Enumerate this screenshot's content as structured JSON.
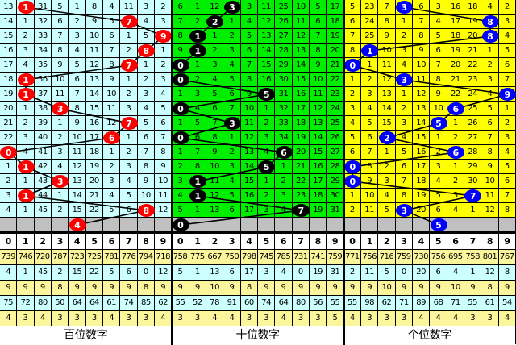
{
  "chart_data": {
    "type": "table",
    "sections": [
      {
        "label": "百位数字",
        "bg": "#ccffff",
        "ball_color": "#ff0000",
        "rows": [
          [
            13,
            1,
            31,
            5,
            1,
            8,
            4,
            11,
            3,
            2
          ],
          [
            14,
            1,
            32,
            6,
            2,
            9,
            5,
            7,
            4,
            3
          ],
          [
            15,
            2,
            33,
            7,
            3,
            10,
            6,
            1,
            5,
            9
          ],
          [
            16,
            3,
            34,
            8,
            4,
            11,
            7,
            2,
            8,
            1
          ],
          [
            17,
            4,
            35,
            9,
            5,
            12,
            8,
            7,
            1,
            2
          ],
          [
            18,
            1,
            36,
            10,
            6,
            13,
            9,
            1,
            2,
            3
          ],
          [
            19,
            1,
            37,
            11,
            7,
            14,
            10,
            2,
            3,
            4
          ],
          [
            20,
            1,
            38,
            3,
            8,
            15,
            11,
            3,
            4,
            5
          ],
          [
            21,
            2,
            39,
            1,
            9,
            16,
            12,
            7,
            5,
            6
          ],
          [
            22,
            3,
            40,
            2,
            10,
            17,
            6,
            1,
            6,
            7
          ],
          [
            0,
            4,
            41,
            3,
            11,
            18,
            1,
            2,
            7,
            8
          ],
          [
            1,
            1,
            42,
            4,
            12,
            19,
            2,
            3,
            8,
            9
          ],
          [
            2,
            1,
            43,
            3,
            13,
            20,
            3,
            4,
            9,
            10
          ],
          [
            3,
            1,
            44,
            1,
            14,
            21,
            4,
            5,
            10,
            11
          ],
          [
            4,
            1,
            45,
            2,
            15,
            22,
            5,
            6,
            8,
            12
          ]
        ],
        "draws": [
          1,
          7,
          9,
          8,
          7,
          1,
          1,
          3,
          7,
          6,
          0,
          1,
          3,
          1,
          8
        ],
        "prediction": 4,
        "stats": [
          [
            739,
            746,
            720,
            787,
            723,
            725,
            781,
            776,
            794,
            718
          ],
          [
            4,
            1,
            45,
            2,
            15,
            22,
            5,
            6,
            0,
            12
          ],
          [
            9,
            9,
            9,
            8,
            9,
            9,
            9,
            9,
            8,
            9
          ],
          [
            75,
            72,
            80,
            50,
            64,
            64,
            61,
            74,
            85,
            62
          ],
          [
            4,
            3,
            4,
            3,
            3,
            3,
            4,
            3,
            3,
            4
          ]
        ]
      },
      {
        "label": "十位数字",
        "bg": "#00ee00",
        "ball_color": "#000000",
        "rows": [
          [
            6,
            1,
            12,
            3,
            3,
            11,
            25,
            10,
            5,
            17
          ],
          [
            7,
            2,
            2,
            1,
            4,
            12,
            26,
            11,
            6,
            18
          ],
          [
            8,
            1,
            1,
            2,
            5,
            13,
            27,
            12,
            7,
            19
          ],
          [
            9,
            1,
            2,
            3,
            6,
            14,
            28,
            13,
            8,
            20
          ],
          [
            0,
            1,
            3,
            4,
            7,
            15,
            29,
            14,
            9,
            21
          ],
          [
            0,
            2,
            4,
            5,
            8,
            16,
            30,
            15,
            10,
            22
          ],
          [
            1,
            3,
            5,
            6,
            9,
            5,
            31,
            16,
            11,
            23
          ],
          [
            0,
            4,
            6,
            7,
            10,
            1,
            32,
            17,
            12,
            24
          ],
          [
            1,
            5,
            7,
            3,
            11,
            2,
            33,
            18,
            13,
            25
          ],
          [
            0,
            6,
            8,
            1,
            12,
            3,
            34,
            19,
            14,
            26
          ],
          [
            1,
            7,
            9,
            2,
            13,
            4,
            6,
            20,
            15,
            27
          ],
          [
            2,
            8,
            10,
            3,
            14,
            5,
            1,
            21,
            16,
            28
          ],
          [
            3,
            1,
            11,
            4,
            15,
            1,
            2,
            22,
            17,
            29
          ],
          [
            4,
            1,
            12,
            5,
            16,
            2,
            3,
            23,
            18,
            30
          ],
          [
            5,
            1,
            13,
            6,
            17,
            3,
            4,
            7,
            19,
            31
          ]
        ],
        "draws": [
          3,
          2,
          1,
          1,
          0,
          0,
          5,
          0,
          3,
          0,
          6,
          5,
          1,
          1,
          7
        ],
        "prediction": 0,
        "stats": [
          [
            758,
            775,
            667,
            750,
            798,
            745,
            785,
            731,
            741,
            759
          ],
          [
            5,
            1,
            13,
            6,
            17,
            3,
            4,
            0,
            19,
            31
          ],
          [
            9,
            9,
            10,
            9,
            8,
            9,
            9,
            9,
            9,
            9
          ],
          [
            55,
            52,
            78,
            91,
            60,
            74,
            64,
            80,
            56,
            55
          ],
          [
            3,
            3,
            4,
            4,
            3,
            3,
            4,
            3,
            3,
            5
          ]
        ]
      },
      {
        "label": "个位数字",
        "bg": "#ffff00",
        "ball_color": "#0000ff",
        "rows": [
          [
            5,
            23,
            7,
            3,
            6,
            3,
            16,
            18,
            4,
            2
          ],
          [
            6,
            24,
            8,
            1,
            7,
            4,
            17,
            19,
            8,
            3
          ],
          [
            7,
            25,
            9,
            2,
            8,
            5,
            18,
            20,
            8,
            4
          ],
          [
            8,
            1,
            10,
            3,
            9,
            6,
            19,
            21,
            1,
            5
          ],
          [
            0,
            1,
            11,
            4,
            10,
            7,
            20,
            22,
            2,
            6
          ],
          [
            1,
            2,
            12,
            3,
            11,
            8,
            21,
            23,
            3,
            7
          ],
          [
            2,
            3,
            13,
            1,
            12,
            9,
            22,
            24,
            4,
            9
          ],
          [
            3,
            4,
            14,
            2,
            13,
            10,
            6,
            25,
            5,
            1
          ],
          [
            4,
            5,
            15,
            3,
            14,
            5,
            1,
            26,
            6,
            2
          ],
          [
            5,
            6,
            2,
            4,
            15,
            1,
            2,
            27,
            7,
            3
          ],
          [
            6,
            7,
            1,
            5,
            16,
            2,
            6,
            28,
            8,
            4
          ],
          [
            0,
            8,
            2,
            6,
            17,
            3,
            1,
            29,
            9,
            5
          ],
          [
            0,
            9,
            3,
            7,
            18,
            4,
            2,
            30,
            10,
            6
          ],
          [
            1,
            10,
            4,
            8,
            19,
            5,
            3,
            7,
            11,
            7
          ],
          [
            2,
            11,
            5,
            3,
            20,
            6,
            4,
            1,
            12,
            8
          ]
        ],
        "draws": [
          3,
          8,
          8,
          1,
          0,
          3,
          9,
          6,
          5,
          2,
          6,
          0,
          0,
          7,
          3
        ],
        "prediction": 5,
        "stats": [
          [
            771,
            756,
            716,
            759,
            730,
            756,
            695,
            758,
            801,
            767
          ],
          [
            2,
            11,
            5,
            0,
            20,
            6,
            4,
            1,
            12,
            8
          ],
          [
            9,
            9,
            10,
            9,
            9,
            9,
            10,
            9,
            8,
            9
          ],
          [
            55,
            98,
            62,
            71,
            89,
            68,
            71,
            55,
            61,
            54
          ],
          [
            4,
            3,
            3,
            3,
            4,
            4,
            4,
            3,
            3,
            4
          ]
        ]
      }
    ],
    "digit_headers": [
      0,
      1,
      2,
      3,
      4,
      5,
      6,
      7,
      8,
      9
    ],
    "stat_row_colors": [
      "#fbf59c",
      "#ccffff",
      "#fbf59c",
      "#ccffff",
      "#fbf59c"
    ],
    "prediction_row_color": "#c0c0c0"
  }
}
